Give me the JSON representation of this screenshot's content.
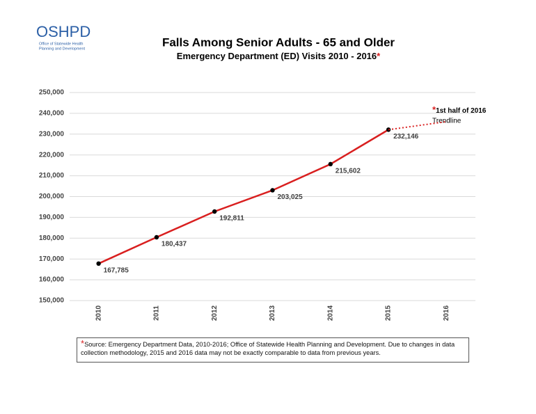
{
  "logo": {
    "name": "OSHPD",
    "lines": [
      "Office of Statewide Health",
      "Planning and Development"
    ]
  },
  "chart_data": {
    "type": "line",
    "title": "Falls Among Senior Adults - 65 and Older",
    "subtitle": "Emergency Department (ED) Visits 2010 - 2016",
    "subtitle_mark": "*",
    "categories": [
      "2010",
      "2011",
      "2012",
      "2013",
      "2014",
      "2015",
      "2016"
    ],
    "series": [
      {
        "color": "#d91f1f",
        "style": "solid",
        "marker": true,
        "values": [
          167785,
          180437,
          192811,
          203025,
          215602,
          232146,
          null
        ],
        "value_labels": [
          "167,785",
          "180,437",
          "192,811",
          "203,025",
          "215,602",
          "232,146",
          null
        ]
      },
      {
        "color": "#d91f1f",
        "style": "dotted",
        "marker": false,
        "values": [
          null,
          null,
          null,
          null,
          null,
          232146,
          236000
        ]
      }
    ],
    "ylim": [
      150000,
      250000
    ],
    "yticks": [
      {
        "value": 150000,
        "label": "150,000"
      },
      {
        "value": 160000,
        "label": "160,000"
      },
      {
        "value": 170000,
        "label": "170,000"
      },
      {
        "value": 180000,
        "label": "180,000"
      },
      {
        "value": 190000,
        "label": "190,000"
      },
      {
        "value": 200000,
        "label": "200,000"
      },
      {
        "value": 210000,
        "label": "210,000"
      },
      {
        "value": 220000,
        "label": "220,000"
      },
      {
        "value": 230000,
        "label": "230,000"
      },
      {
        "value": 240000,
        "label": "240,000"
      },
      {
        "value": 250000,
        "label": "250,000"
      }
    ],
    "grid": true,
    "annotation": {
      "mark": "*",
      "title": "1st half of 2016",
      "text": "Trendline"
    }
  },
  "footnote": {
    "mark": "*",
    "text": "Source: Emergency Department Data, 2010-2016; Office of Statewide Health Planning and Development. Due to changes in data collection methodology, 2015 and 2016 data may not be exactly comparable to data from previous years."
  }
}
